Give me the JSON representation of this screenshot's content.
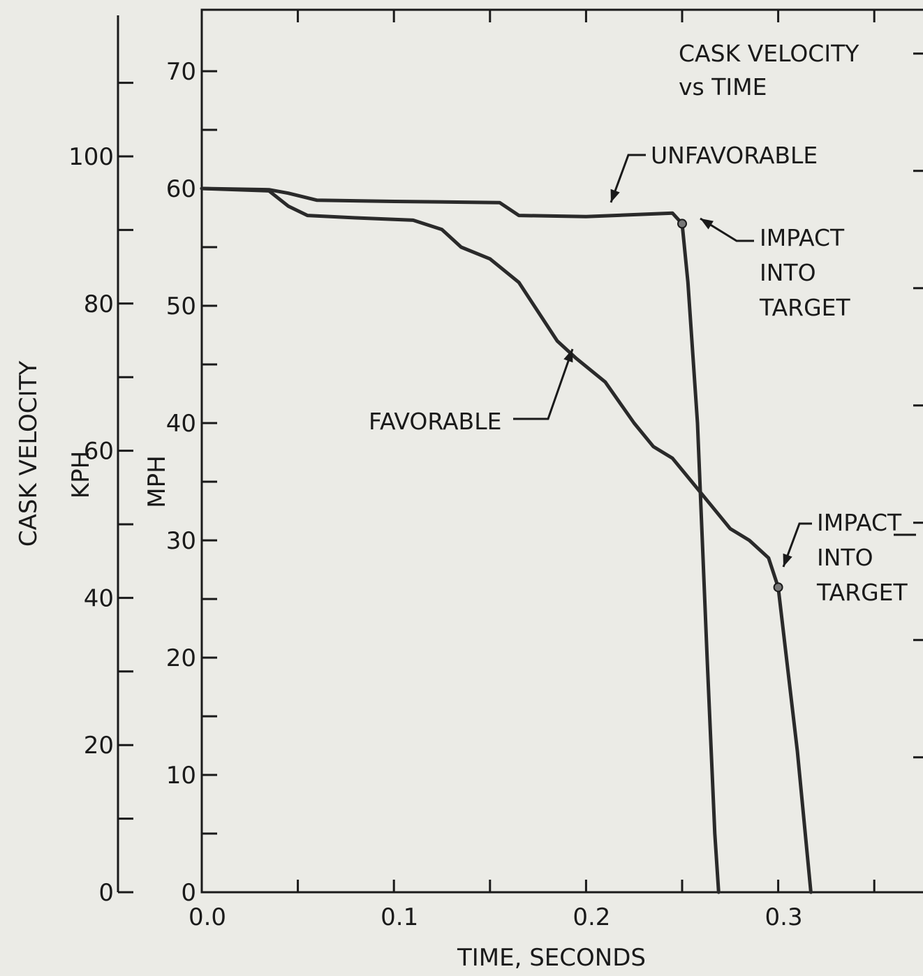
{
  "chart_data": {
    "type": "line",
    "title": [
      "CASK VELOCITY",
      "vs TIME"
    ],
    "xlabel": "TIME, SECONDS",
    "ylabel_outer": "CASK VELOCITY",
    "ylabel_kph": "KPH",
    "ylabel_mph": "MPH",
    "xlim": [
      0,
      0.37
    ],
    "ylim_mph": [
      0,
      75
    ],
    "ylim_kph": [
      0,
      120
    ],
    "x_ticks": [
      {
        "value": 0.0,
        "label": "0.0"
      },
      {
        "value": 0.1,
        "label": "0.1"
      },
      {
        "value": 0.2,
        "label": "0.2"
      },
      {
        "value": 0.3,
        "label": "0.3"
      }
    ],
    "y_ticks_mph": [
      {
        "value": 0,
        "label": "0"
      },
      {
        "value": 10,
        "label": "10"
      },
      {
        "value": 20,
        "label": "20"
      },
      {
        "value": 30,
        "label": "30"
      },
      {
        "value": 40,
        "label": "40"
      },
      {
        "value": 50,
        "label": "50"
      },
      {
        "value": 60,
        "label": "60"
      },
      {
        "value": 70,
        "label": "70"
      }
    ],
    "y_ticks_kph": [
      {
        "value": 0,
        "label": "0"
      },
      {
        "value": 20,
        "label": "20"
      },
      {
        "value": 40,
        "label": "40"
      },
      {
        "value": 60,
        "label": "60"
      },
      {
        "value": 80,
        "label": "80"
      },
      {
        "value": 100,
        "label": "100"
      }
    ],
    "series": [
      {
        "name": "UNFAVORABLE",
        "x": [
          0.0,
          0.035,
          0.045,
          0.06,
          0.1,
          0.155,
          0.165,
          0.2,
          0.245,
          0.25,
          0.253,
          0.258,
          0.263,
          0.267,
          0.269
        ],
        "y": [
          60.0,
          59.9,
          59.6,
          59.0,
          58.9,
          58.8,
          57.7,
          57.6,
          57.9,
          57.0,
          52.0,
          40.0,
          20.0,
          5.0,
          0.0
        ]
      },
      {
        "name": "FAVORABLE",
        "x": [
          0.0,
          0.035,
          0.045,
          0.055,
          0.08,
          0.11,
          0.125,
          0.135,
          0.15,
          0.165,
          0.175,
          0.185,
          0.195,
          0.21,
          0.225,
          0.235,
          0.245,
          0.255,
          0.265,
          0.275,
          0.285,
          0.295,
          0.3,
          0.31,
          0.317
        ],
        "y": [
          60.0,
          59.8,
          58.5,
          57.7,
          57.5,
          57.3,
          56.5,
          55.0,
          54.0,
          52.0,
          49.5,
          47.0,
          45.5,
          43.5,
          40.0,
          38.0,
          37.0,
          35.0,
          33.0,
          31.0,
          30.0,
          28.5,
          26.0,
          12.0,
          0.0
        ]
      }
    ],
    "annotations": {
      "unfavorable_label": "UNFAVORABLE",
      "favorable_label": "FAVORABLE",
      "impact_1": [
        "IMPACT",
        "INTO",
        "TARGET"
      ],
      "impact_2": [
        "IMPACT",
        "INTO",
        "TARGET"
      ]
    },
    "colors": {
      "background": "#ebebe6",
      "ink": "#1a1a1a",
      "line": "#2a2a2a"
    },
    "grid": false
  }
}
